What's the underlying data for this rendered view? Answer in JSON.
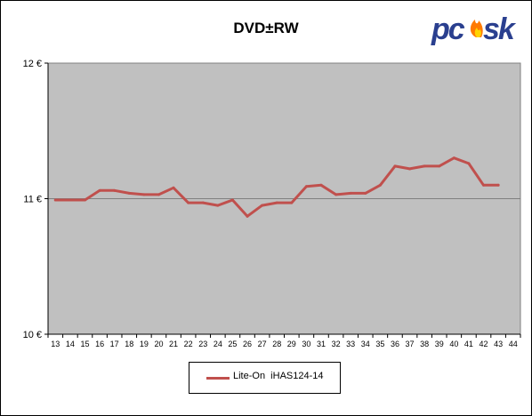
{
  "title": "DVD±RW",
  "logo": {
    "text": "pcusk",
    "brand_color": "#2a3f8f",
    "flame_color": "#ff7a00"
  },
  "colors": {
    "plot_bg": "#c0c0c0",
    "series": "#c0504d",
    "grid": "#808080"
  },
  "chart_data": {
    "type": "line",
    "title": "DVD±RW",
    "xlabel": "",
    "ylabel": "",
    "x": [
      13,
      14,
      15,
      16,
      17,
      18,
      19,
      20,
      21,
      22,
      23,
      24,
      25,
      26,
      27,
      28,
      29,
      30,
      31,
      32,
      33,
      34,
      35,
      36,
      37,
      38,
      39,
      40,
      41,
      42,
      43
    ],
    "x_ticks": [
      13,
      14,
      15,
      16,
      17,
      18,
      19,
      20,
      21,
      22,
      23,
      24,
      25,
      26,
      27,
      28,
      29,
      30,
      31,
      32,
      33,
      34,
      35,
      36,
      37,
      38,
      39,
      40,
      41,
      42,
      43,
      44
    ],
    "ylim": [
      10,
      12
    ],
    "y_ticks": [
      10,
      11,
      12
    ],
    "y_tick_labels": [
      "10 €",
      "11 €",
      "12 €"
    ],
    "grid": true,
    "legend_position": "bottom",
    "series": [
      {
        "name": "Lite-On  iHAS124-14",
        "values": [
          10.99,
          10.99,
          10.99,
          11.06,
          11.06,
          11.04,
          11.03,
          11.03,
          11.08,
          10.97,
          10.97,
          10.95,
          10.99,
          10.87,
          10.95,
          10.97,
          10.97,
          11.09,
          11.1,
          11.03,
          11.04,
          11.04,
          11.1,
          11.24,
          11.22,
          11.24,
          11.24,
          11.3,
          11.26,
          11.1,
          11.1
        ]
      }
    ]
  }
}
